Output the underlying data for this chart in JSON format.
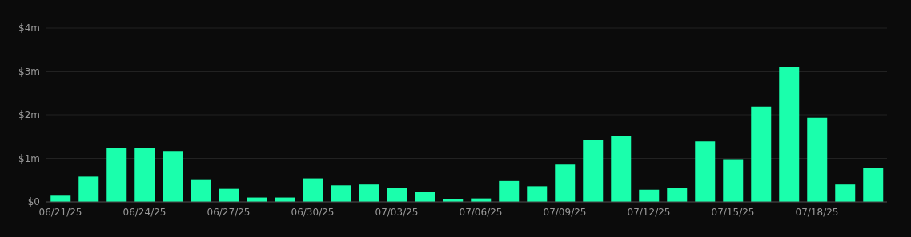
{
  "chart_data": {
    "type": "bar",
    "categories": [
      "06/21/25",
      null,
      null,
      "06/24/25",
      null,
      null,
      "06/27/25",
      null,
      null,
      "06/30/25",
      null,
      null,
      "07/03/25",
      null,
      null,
      "07/06/25",
      null,
      null,
      "07/09/25",
      null,
      null,
      "07/12/25",
      null,
      null,
      "07/15/25",
      null,
      null,
      "07/18/25",
      null,
      null
    ],
    "values": [
      0.16,
      0.58,
      1.23,
      1.23,
      1.17,
      0.52,
      0.3,
      0.1,
      0.1,
      0.54,
      0.38,
      0.4,
      0.32,
      0.22,
      0.06,
      0.08,
      0.48,
      0.36,
      0.86,
      1.43,
      1.51,
      0.28,
      0.32,
      1.39,
      0.98,
      2.19,
      3.1,
      1.93,
      0.4,
      0.78
    ],
    "color": "#1affac",
    "ylim": [
      0,
      4
    ],
    "yticks": [
      {
        "value": 0,
        "label": "$0"
      },
      {
        "value": 1,
        "label": "$1m"
      },
      {
        "value": 2,
        "label": "$2m"
      },
      {
        "value": 3,
        "label": "$3m"
      },
      {
        "value": 4,
        "label": "$4m"
      }
    ],
    "grid": "y"
  }
}
